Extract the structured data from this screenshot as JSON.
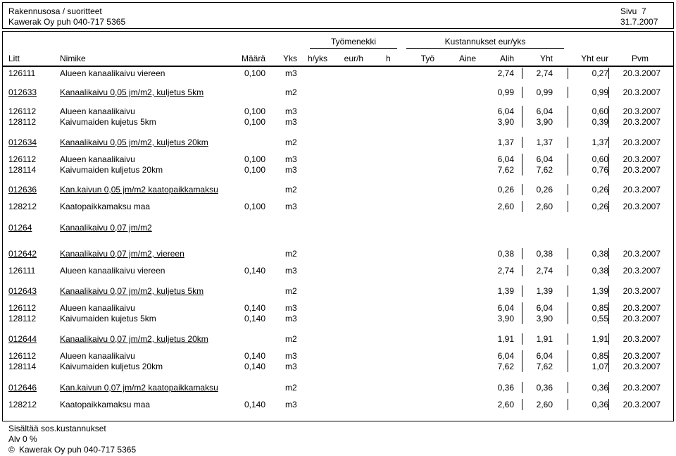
{
  "header": {
    "line1_left": "Rakennusosa / suoritteet",
    "line2_left": "Kawerak Oy puh 040-717 5365",
    "page_label": "Sivu  7",
    "date": "31.7.2007"
  },
  "columns": {
    "group_labor": "Työmenekki",
    "group_cost": "Kustannukset eur/yks",
    "litt": "Litt",
    "nimike": "Nimike",
    "maara": "Määrä",
    "yks": "Yks",
    "hyks": "h/yks",
    "eurh": "eur/h",
    "h": "h",
    "tyo": "Työ",
    "aine": "Aine",
    "alih": "Alih",
    "yht": "Yht",
    "yht_eur": "Yht eur",
    "pvm": "Pvm"
  },
  "rows": [
    {
      "litt": "126111",
      "name": "Alueen kanaalikaivu viereen",
      "qty": "0,100",
      "unit": "m3",
      "alih": "2,74",
      "yht": "2,74",
      "total": "0,27",
      "date": "20.3.2007",
      "heading": false
    },
    {
      "litt": "012633",
      "name": "Kanaalikaivu 0,05 jm/m2, kuljetus 5km",
      "qty": "",
      "unit": "m2",
      "alih": "0,99",
      "yht": "0,99",
      "total": "0,99",
      "date": "20.3.2007",
      "heading": true
    },
    {
      "litt": "126112",
      "name": "Alueen kanaalikaivu",
      "qty": "0,100",
      "unit": "m3",
      "alih": "6,04",
      "yht": "6,04",
      "total": "0,60",
      "date": "20.3.2007",
      "heading": false
    },
    {
      "litt": "128112",
      "name": "Kaivumaiden kujetus 5km",
      "qty": "0,100",
      "unit": "m3",
      "alih": "3,90",
      "yht": "3,90",
      "total": "0,39",
      "date": "20.3.2007",
      "heading": false
    },
    {
      "litt": "012634",
      "name": "Kanaalikaivu 0,05 jm/m2, kuljetus 20km",
      "qty": "",
      "unit": "m2",
      "alih": "1,37",
      "yht": "1,37",
      "total": "1,37",
      "date": "20.3.2007",
      "heading": true
    },
    {
      "litt": "126112",
      "name": "Alueen kanaalikaivu",
      "qty": "0,100",
      "unit": "m3",
      "alih": "6,04",
      "yht": "6,04",
      "total": "0,60",
      "date": "20.3.2007",
      "heading": false
    },
    {
      "litt": "128114",
      "name": "Kaivumaiden kuljetus 20km",
      "qty": "0,100",
      "unit": "m3",
      "alih": "7,62",
      "yht": "7,62",
      "total": "0,76",
      "date": "20.3.2007",
      "heading": false
    },
    {
      "litt": "012636",
      "name": "Kan.kaivun 0,05 jm/m2 kaatopaikkamaksu",
      "qty": "",
      "unit": "m2",
      "alih": "0,26",
      "yht": "0,26",
      "total": "0,26",
      "date": "20.3.2007",
      "heading": true
    },
    {
      "litt": "128212",
      "name": "Kaatopaikkamaksu maa",
      "qty": "0,100",
      "unit": "m3",
      "alih": "2,60",
      "yht": "2,60",
      "total": "0,26",
      "date": "20.3.2007",
      "heading": false
    },
    {
      "litt": "01264",
      "name": "Kanaalikaivu 0,07 jm/m2",
      "qty": "",
      "unit": "",
      "alih": "",
      "yht": "",
      "total": "",
      "date": "",
      "heading": true
    },
    {
      "litt": "012642",
      "name": "Kanaalikaivu 0,07 jm/m2, viereen",
      "qty": "",
      "unit": "m2",
      "alih": "0,38",
      "yht": "0,38",
      "total": "0,38",
      "date": "20.3.2007",
      "heading": true
    },
    {
      "litt": "126111",
      "name": "Alueen kanaalikaivu viereen",
      "qty": "0,140",
      "unit": "m3",
      "alih": "2,74",
      "yht": "2,74",
      "total": "0,38",
      "date": "20.3.2007",
      "heading": false
    },
    {
      "litt": "012643",
      "name": "Kanaalikaivu 0,07 jm/m2, kuljetus 5km",
      "qty": "",
      "unit": "m2",
      "alih": "1,39",
      "yht": "1,39",
      "total": "1,39",
      "date": "20.3.2007",
      "heading": true
    },
    {
      "litt": "126112",
      "name": "Alueen kanaalikaivu",
      "qty": "0,140",
      "unit": "m3",
      "alih": "6,04",
      "yht": "6,04",
      "total": "0,85",
      "date": "20.3.2007",
      "heading": false
    },
    {
      "litt": "128112",
      "name": "Kaivumaiden kujetus 5km",
      "qty": "0,140",
      "unit": "m3",
      "alih": "3,90",
      "yht": "3,90",
      "total": "0,55",
      "date": "20.3.2007",
      "heading": false
    },
    {
      "litt": "012644",
      "name": "Kanaalikaivu 0,07 jm/m2, kuljetus 20km",
      "qty": "",
      "unit": "m2",
      "alih": "1,91",
      "yht": "1,91",
      "total": "1,91",
      "date": "20.3.2007",
      "heading": true
    },
    {
      "litt": "126112",
      "name": "Alueen kanaalikaivu",
      "qty": "0,140",
      "unit": "m3",
      "alih": "6,04",
      "yht": "6,04",
      "total": "0,85",
      "date": "20.3.2007",
      "heading": false
    },
    {
      "litt": "128114",
      "name": "Kaivumaiden kuljetus 20km",
      "qty": "0,140",
      "unit": "m3",
      "alih": "7,62",
      "yht": "7,62",
      "total": "1,07",
      "date": "20.3.2007",
      "heading": false
    },
    {
      "litt": "012646",
      "name": "Kan.kaivun 0,07 jm/m2 kaatopaikkamaksu",
      "qty": "",
      "unit": "m2",
      "alih": "0,36",
      "yht": "0,36",
      "total": "0,36",
      "date": "20.3.2007",
      "heading": true
    },
    {
      "litt": "128212",
      "name": "Kaatopaikkamaksu maa",
      "qty": "0,140",
      "unit": "m3",
      "alih": "2,60",
      "yht": "2,60",
      "total": "0,36",
      "date": "20.3.2007",
      "heading": false
    }
  ],
  "footer": {
    "line1": "Sisältää sos.kustannukset",
    "line2": "Alv 0 %",
    "copyright_symbol": "©",
    "copyright_text": "Kawerak Oy puh 040-717 5365"
  }
}
